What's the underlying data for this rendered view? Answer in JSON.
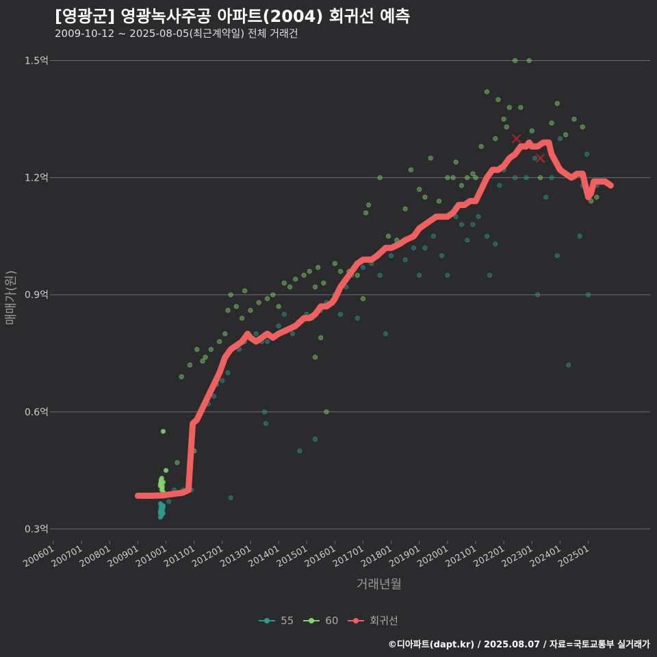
{
  "header": {
    "title": "[영광군] 영광녹사주공 아파트(2004) 회귀선 예측",
    "subtitle": "2009-10-12 ~ 2025-08-05(최근계약일) 전체 거래건"
  },
  "caption": "©디아파트(dapt.kr) / 2025.08.07 / 자료=국토교통부 실거래가",
  "colors": {
    "background": "#2b2a2c",
    "grid": "#6e6d70",
    "series55": "#2a9d8f",
    "series60": "#7fd66b",
    "regression": "#f06060",
    "extreme": "#b02828"
  },
  "chart_data": {
    "type": "scatter",
    "title": "[영광군] 영광녹사주공 아파트(2004) 회귀선 예측",
    "xlabel": "거래년월",
    "ylabel": "매매가(원)",
    "xlim": [
      2006.0,
      2027.2
    ],
    "ylim": [
      0.27,
      1.55
    ],
    "yticks": [
      0.3,
      0.6,
      0.9,
      1.2,
      1.5
    ],
    "ytick_labels": [
      "0.3억",
      "0.6억",
      "0.9억",
      "1.2억",
      "1.5억"
    ],
    "xticks": [
      2006,
      2007,
      2008,
      2009,
      2010,
      2011,
      2012,
      2013,
      2014,
      2015,
      2016,
      2017,
      2018,
      2019,
      2020,
      2021,
      2022,
      2023,
      2024,
      2025
    ],
    "xtick_labels": [
      "200601",
      "200701",
      "200801",
      "200901",
      "201001",
      "201101",
      "201201",
      "201301",
      "201401",
      "201501",
      "201601",
      "201701",
      "201801",
      "201901",
      "202001",
      "202101",
      "202201",
      "202301",
      "202401",
      "202501"
    ],
    "legend": [
      "55",
      "60",
      "회귀선"
    ],
    "series": [
      {
        "name": "55",
        "points": [
          [
            2009.8,
            0.33
          ],
          [
            2009.8,
            0.34
          ],
          [
            2009.8,
            0.345
          ],
          [
            2009.82,
            0.35
          ],
          [
            2009.82,
            0.355
          ],
          [
            2009.85,
            0.335
          ],
          [
            2009.85,
            0.34
          ],
          [
            2009.87,
            0.345
          ],
          [
            2009.87,
            0.35
          ],
          [
            2009.9,
            0.355
          ],
          [
            2009.9,
            0.36
          ],
          [
            2009.8,
            0.365
          ],
          [
            2009.85,
            0.36
          ],
          [
            2009.9,
            0.34
          ],
          [
            2010.1,
            0.37
          ],
          [
            2010.2,
            0.39
          ],
          [
            2010.3,
            0.4
          ],
          [
            2010.6,
            0.4
          ],
          [
            2010.9,
            0.4
          ],
          [
            2011.2,
            0.6
          ],
          [
            2011.5,
            0.62
          ],
          [
            2011.7,
            0.64
          ],
          [
            2011.8,
            0.67
          ],
          [
            2012.0,
            0.68
          ],
          [
            2012.2,
            0.7
          ],
          [
            2012.3,
            0.38
          ],
          [
            2012.6,
            0.76
          ],
          [
            2012.8,
            0.78
          ],
          [
            2013.0,
            0.79
          ],
          [
            2013.2,
            0.8
          ],
          [
            2013.4,
            0.78
          ],
          [
            2013.5,
            0.6
          ],
          [
            2013.55,
            0.57
          ],
          [
            2013.6,
            0.78
          ],
          [
            2013.8,
            0.79
          ],
          [
            2014.0,
            0.82
          ],
          [
            2014.2,
            0.85
          ],
          [
            2014.5,
            0.8
          ],
          [
            2014.7,
            0.83
          ],
          [
            2014.75,
            0.5
          ],
          [
            2015.0,
            0.85
          ],
          [
            2015.2,
            0.84
          ],
          [
            2015.3,
            0.53
          ],
          [
            2015.5,
            0.86
          ],
          [
            2015.7,
            0.88
          ],
          [
            2016.0,
            0.9
          ],
          [
            2016.2,
            0.85
          ],
          [
            2016.4,
            0.92
          ],
          [
            2016.6,
            0.95
          ],
          [
            2016.8,
            0.84
          ],
          [
            2017.0,
            0.97
          ],
          [
            2017.3,
            0.98
          ],
          [
            2017.6,
            0.95
          ],
          [
            2017.8,
            0.8
          ],
          [
            2018.0,
            1.0
          ],
          [
            2018.2,
            1.03
          ],
          [
            2018.5,
            0.99
          ],
          [
            2018.8,
            1.02
          ],
          [
            2019.0,
            0.95
          ],
          [
            2019.2,
            1.02
          ],
          [
            2019.5,
            1.05
          ],
          [
            2019.8,
            1.0
          ],
          [
            2020.0,
            0.95
          ],
          [
            2020.3,
            1.1
          ],
          [
            2020.5,
            1.08
          ],
          [
            2020.7,
            1.04
          ],
          [
            2020.9,
            1.08
          ],
          [
            2021.1,
            1.1
          ],
          [
            2021.4,
            1.05
          ],
          [
            2021.5,
            0.95
          ],
          [
            2021.7,
            1.03
          ],
          [
            2021.85,
            1.18
          ],
          [
            2022.0,
            1.22
          ],
          [
            2022.4,
            1.2
          ],
          [
            2022.6,
            1.28
          ],
          [
            2022.8,
            1.2
          ],
          [
            2023.1,
            1.25
          ],
          [
            2023.2,
            0.9
          ],
          [
            2023.5,
            1.15
          ],
          [
            2023.7,
            1.2
          ],
          [
            2023.9,
            1.0
          ],
          [
            2024.0,
            1.3
          ],
          [
            2024.3,
            0.72
          ],
          [
            2024.5,
            1.2
          ],
          [
            2024.7,
            1.05
          ],
          [
            2024.8,
            1.18
          ],
          [
            2024.95,
            1.26
          ],
          [
            2025.0,
            0.9
          ],
          [
            2025.3,
            1.18
          ]
        ]
      },
      {
        "name": "60",
        "points": [
          [
            2009.8,
            0.41
          ],
          [
            2009.8,
            0.415
          ],
          [
            2009.82,
            0.42
          ],
          [
            2009.82,
            0.425
          ],
          [
            2009.85,
            0.43
          ],
          [
            2009.85,
            0.4
          ],
          [
            2009.87,
            0.405
          ],
          [
            2009.87,
            0.41
          ],
          [
            2009.9,
            0.42
          ],
          [
            2009.9,
            0.395
          ],
          [
            2009.9,
            0.55
          ],
          [
            2010.0,
            0.45
          ],
          [
            2010.4,
            0.47
          ],
          [
            2010.55,
            0.69
          ],
          [
            2010.85,
            0.72
          ],
          [
            2011.0,
            0.5
          ],
          [
            2011.1,
            0.76
          ],
          [
            2011.3,
            0.73
          ],
          [
            2011.4,
            0.74
          ],
          [
            2011.6,
            0.76
          ],
          [
            2011.9,
            0.78
          ],
          [
            2012.1,
            0.8
          ],
          [
            2012.2,
            0.86
          ],
          [
            2012.3,
            0.9
          ],
          [
            2012.5,
            0.87
          ],
          [
            2012.7,
            0.84
          ],
          [
            2012.8,
            0.91
          ],
          [
            2013.0,
            0.86
          ],
          [
            2013.3,
            0.88
          ],
          [
            2013.6,
            0.89
          ],
          [
            2013.8,
            0.9
          ],
          [
            2014.0,
            0.87
          ],
          [
            2014.2,
            0.93
          ],
          [
            2014.4,
            0.92
          ],
          [
            2014.6,
            0.94
          ],
          [
            2014.9,
            0.95
          ],
          [
            2015.1,
            0.96
          ],
          [
            2015.3,
            0.92
          ],
          [
            2015.4,
            0.97
          ],
          [
            2015.6,
            0.93
          ],
          [
            2015.7,
            0.6
          ],
          [
            2015.3,
            0.74
          ],
          [
            2015.5,
            0.79
          ],
          [
            2016.0,
            0.98
          ],
          [
            2016.2,
            0.96
          ],
          [
            2016.5,
            0.96
          ],
          [
            2016.8,
            0.95
          ],
          [
            2017.0,
            0.89
          ],
          [
            2017.1,
            1.11
          ],
          [
            2017.2,
            1.13
          ],
          [
            2017.6,
            1.2
          ],
          [
            2017.9,
            1.05
          ],
          [
            2018.2,
            1.04
          ],
          [
            2018.5,
            1.12
          ],
          [
            2018.7,
            1.22
          ],
          [
            2019.0,
            1.17
          ],
          [
            2019.2,
            1.15
          ],
          [
            2019.4,
            1.25
          ],
          [
            2019.7,
            1.14
          ],
          [
            2020.0,
            1.2
          ],
          [
            2020.2,
            1.2
          ],
          [
            2020.3,
            1.24
          ],
          [
            2020.5,
            1.18
          ],
          [
            2020.7,
            1.2
          ],
          [
            2020.9,
            1.21
          ],
          [
            2021.0,
            1.2
          ],
          [
            2021.2,
            1.28
          ],
          [
            2021.4,
            1.42
          ],
          [
            2021.7,
            1.3
          ],
          [
            2021.8,
            1.4
          ],
          [
            2022.0,
            1.35
          ],
          [
            2022.2,
            1.38
          ],
          [
            2022.1,
            1.33
          ],
          [
            2022.4,
            1.5
          ],
          [
            2022.6,
            1.38
          ],
          [
            2022.9,
            1.5
          ],
          [
            2023.0,
            1.32
          ],
          [
            2023.3,
            1.2
          ],
          [
            2023.7,
            1.34
          ],
          [
            2023.9,
            1.39
          ],
          [
            2024.2,
            1.31
          ],
          [
            2024.5,
            1.35
          ],
          [
            2024.8,
            1.33
          ],
          [
            2025.1,
            1.14
          ],
          [
            2025.3,
            1.15
          ]
        ]
      },
      {
        "name": "회귀선",
        "points": [
          [
            2009.0,
            0.385
          ],
          [
            2009.5,
            0.385
          ],
          [
            2009.9,
            0.386
          ],
          [
            2010.3,
            0.39
          ],
          [
            2010.6,
            0.393
          ],
          [
            2010.8,
            0.4
          ],
          [
            2010.95,
            0.57
          ],
          [
            2011.1,
            0.58
          ],
          [
            2011.3,
            0.61
          ],
          [
            2011.5,
            0.64
          ],
          [
            2011.7,
            0.67
          ],
          [
            2011.9,
            0.7
          ],
          [
            2012.1,
            0.74
          ],
          [
            2012.3,
            0.76
          ],
          [
            2012.5,
            0.77
          ],
          [
            2012.7,
            0.78
          ],
          [
            2012.9,
            0.8
          ],
          [
            2013.0,
            0.79
          ],
          [
            2013.2,
            0.78
          ],
          [
            2013.4,
            0.79
          ],
          [
            2013.6,
            0.8
          ],
          [
            2013.8,
            0.79
          ],
          [
            2014.0,
            0.8
          ],
          [
            2014.3,
            0.81
          ],
          [
            2014.6,
            0.82
          ],
          [
            2014.9,
            0.84
          ],
          [
            2015.1,
            0.84
          ],
          [
            2015.3,
            0.85
          ],
          [
            2015.5,
            0.87
          ],
          [
            2015.7,
            0.87
          ],
          [
            2015.9,
            0.88
          ],
          [
            2016.0,
            0.89
          ],
          [
            2016.2,
            0.92
          ],
          [
            2016.4,
            0.94
          ],
          [
            2016.6,
            0.96
          ],
          [
            2016.8,
            0.98
          ],
          [
            2017.0,
            0.99
          ],
          [
            2017.3,
            0.99
          ],
          [
            2017.5,
            1.0
          ],
          [
            2017.8,
            1.02
          ],
          [
            2018.0,
            1.02
          ],
          [
            2018.3,
            1.03
          ],
          [
            2018.5,
            1.04
          ],
          [
            2018.8,
            1.05
          ],
          [
            2019.0,
            1.07
          ],
          [
            2019.2,
            1.08
          ],
          [
            2019.4,
            1.09
          ],
          [
            2019.6,
            1.1
          ],
          [
            2019.8,
            1.1
          ],
          [
            2020.0,
            1.1
          ],
          [
            2020.2,
            1.11
          ],
          [
            2020.4,
            1.13
          ],
          [
            2020.6,
            1.13
          ],
          [
            2020.8,
            1.14
          ],
          [
            2021.0,
            1.14
          ],
          [
            2021.2,
            1.17
          ],
          [
            2021.4,
            1.2
          ],
          [
            2021.6,
            1.22
          ],
          [
            2021.8,
            1.22
          ],
          [
            2022.0,
            1.23
          ],
          [
            2022.2,
            1.25
          ],
          [
            2022.4,
            1.26
          ],
          [
            2022.6,
            1.28
          ],
          [
            2022.8,
            1.28
          ],
          [
            2022.9,
            1.29
          ],
          [
            2023.0,
            1.28
          ],
          [
            2023.2,
            1.28
          ],
          [
            2023.4,
            1.29
          ],
          [
            2023.6,
            1.29
          ],
          [
            2023.7,
            1.26
          ],
          [
            2023.85,
            1.24
          ],
          [
            2024.0,
            1.22
          ],
          [
            2024.2,
            1.21
          ],
          [
            2024.4,
            1.2
          ],
          [
            2024.6,
            1.21
          ],
          [
            2024.8,
            1.21
          ],
          [
            2024.9,
            1.18
          ],
          [
            2025.0,
            1.15
          ],
          [
            2025.1,
            1.16
          ],
          [
            2025.2,
            1.19
          ],
          [
            2025.4,
            1.19
          ],
          [
            2025.6,
            1.19
          ],
          [
            2025.8,
            1.18
          ]
        ]
      }
    ],
    "extremes": [
      [
        2022.45,
        1.3
      ],
      [
        2023.3,
        1.25
      ]
    ]
  }
}
